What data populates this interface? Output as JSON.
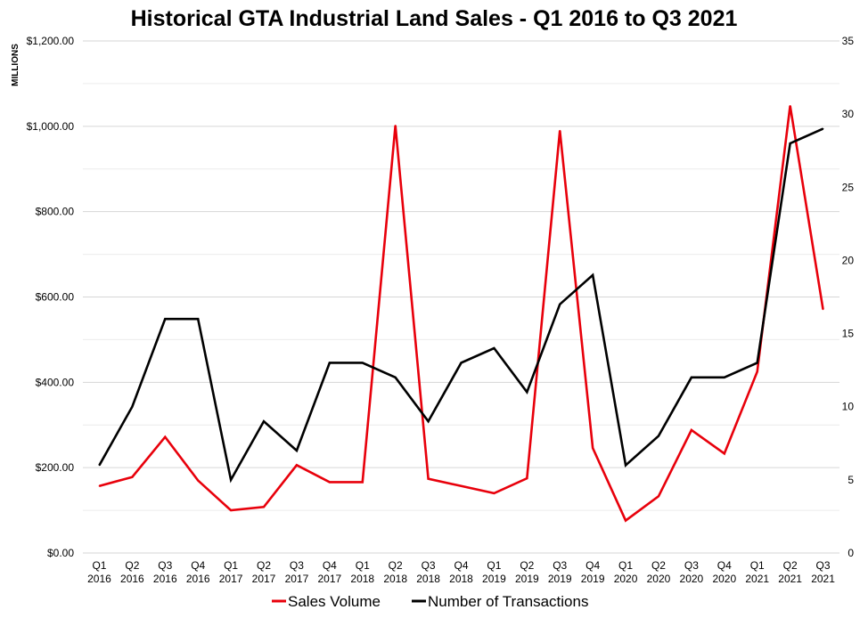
{
  "chart_data": {
    "type": "line",
    "title": "Historical GTA Industrial Land Sales - Q1 2016 to Q3 2021",
    "ylabel": "MILLIONS",
    "categories": [
      [
        "Q1",
        "2016"
      ],
      [
        "Q2",
        "2016"
      ],
      [
        "Q3",
        "2016"
      ],
      [
        "Q4",
        "2016"
      ],
      [
        "Q1",
        "2017"
      ],
      [
        "Q2",
        "2017"
      ],
      [
        "Q3",
        "2017"
      ],
      [
        "Q4",
        "2017"
      ],
      [
        "Q1",
        "2018"
      ],
      [
        "Q2",
        "2018"
      ],
      [
        "Q3",
        "2018"
      ],
      [
        "Q4",
        "2018"
      ],
      [
        "Q1",
        "2019"
      ],
      [
        "Q2",
        "2019"
      ],
      [
        "Q3",
        "2019"
      ],
      [
        "Q4",
        "2019"
      ],
      [
        "Q1",
        "2020"
      ],
      [
        "Q2",
        "2020"
      ],
      [
        "Q3",
        "2020"
      ],
      [
        "Q4",
        "2020"
      ],
      [
        "Q1",
        "2021"
      ],
      [
        "Q2",
        "2021"
      ],
      [
        "Q3",
        "2021"
      ]
    ],
    "y_left": {
      "ylim": [
        0,
        1200
      ],
      "ticks": [
        0,
        200,
        400,
        600,
        800,
        1000,
        1200
      ],
      "tick_labels": [
        "$0.00",
        "$200.00",
        "$400.00",
        "$600.00",
        "$800.00",
        "$1,000.00",
        "$1,200.00"
      ]
    },
    "y_right": {
      "ylim": [
        0,
        35
      ],
      "ticks": [
        0,
        5,
        10,
        15,
        20,
        25,
        30,
        35
      ],
      "tick_labels": [
        "0",
        "5",
        "10",
        "15",
        "20",
        "25",
        "30",
        "35"
      ]
    },
    "series": [
      {
        "name": "Sales Volume",
        "axis": "left",
        "color": "#e8000b",
        "values": [
          157,
          178,
          272,
          170,
          100,
          108,
          206,
          166,
          166,
          1002,
          174,
          157,
          140,
          175,
          990,
          246,
          76,
          133,
          288,
          233,
          425,
          1048,
          571
        ]
      },
      {
        "name": "Number of Transactions",
        "axis": "right",
        "color": "#000000",
        "values": [
          6,
          10,
          16,
          16,
          5,
          9,
          7,
          13,
          13,
          12,
          9,
          13,
          14,
          11,
          17,
          19,
          6,
          8,
          12,
          12,
          13,
          28,
          29
        ]
      }
    ],
    "grid": true,
    "legend_position": "bottom"
  }
}
